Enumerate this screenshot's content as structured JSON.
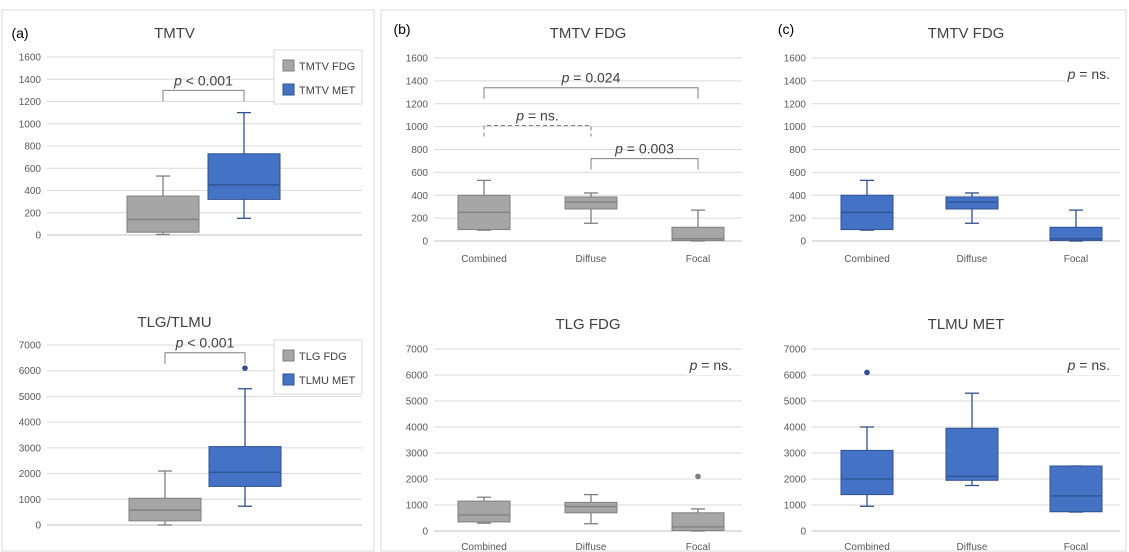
{
  "colors": {
    "gray_box": "#A6A6A6",
    "blue_box": "#4472C4",
    "gray_edge": "#7F7F7F",
    "blue_edge": "#2F528F",
    "grid": "#D9D9D9",
    "text": "#595959"
  },
  "chart_data": [
    {
      "id": "a-top",
      "type": "box",
      "panel_letter": "(a)",
      "title": "TMTV",
      "ylim": [
        0,
        1600
      ],
      "yticks": [
        0,
        200,
        400,
        600,
        800,
        1000,
        1200,
        1400,
        1600
      ],
      "legend": [
        {
          "name": "TMTV FDG",
          "color": "#A6A6A6"
        },
        {
          "name": "TMTV MET",
          "color": "#4472C4"
        }
      ],
      "boxes": [
        {
          "series": "TMTV FDG",
          "min": 5,
          "q1": 25,
          "median": 140,
          "q3": 350,
          "max": 530,
          "color": "#A6A6A6",
          "edge": "#7F7F7F",
          "outliers": []
        },
        {
          "series": "TMTV MET",
          "min": 150,
          "q1": 320,
          "median": 450,
          "q3": 730,
          "max": 1100,
          "color": "#4472C4",
          "edge": "#2F528F",
          "outliers": []
        }
      ],
      "annotations": [
        {
          "text": "p < 0.001",
          "p_prefix": "p",
          "p_rest": " < 0.001",
          "from": 0,
          "to": 1,
          "y": 1300,
          "dashed": false
        }
      ]
    },
    {
      "id": "a-bottom",
      "type": "box",
      "panel_letter": "",
      "title": "TLG/TLMU",
      "ylim": [
        0,
        7000
      ],
      "yticks": [
        0,
        1000,
        2000,
        3000,
        4000,
        5000,
        6000,
        7000
      ],
      "legend": [
        {
          "name": "TLG FDG",
          "color": "#A6A6A6"
        },
        {
          "name": "TLMU MET",
          "color": "#4472C4"
        }
      ],
      "boxes": [
        {
          "series": "TLG FDG",
          "min": 0,
          "q1": 160,
          "median": 580,
          "q3": 1040,
          "max": 2100,
          "color": "#A6A6A6",
          "edge": "#7F7F7F",
          "outliers": []
        },
        {
          "series": "TLMU MET",
          "min": 730,
          "q1": 1500,
          "median": 2050,
          "q3": 3050,
          "max": 5300,
          "color": "#4472C4",
          "edge": "#2F528F",
          "outliers": [
            6100
          ]
        }
      ],
      "annotations": [
        {
          "text": "p < 0.001",
          "p_prefix": "p",
          "p_rest": " < 0.001",
          "from": 0,
          "to": 1,
          "y": 6700,
          "dashed": false
        }
      ]
    },
    {
      "id": "b-top",
      "type": "box",
      "panel_letter": "(b)",
      "title": "TMTV FDG",
      "categories": [
        "Combined",
        "Diffuse",
        "Focal"
      ],
      "ylim": [
        0,
        1600
      ],
      "yticks": [
        0,
        200,
        400,
        600,
        800,
        1000,
        1200,
        1400,
        1600
      ],
      "boxes": [
        {
          "min": 95,
          "q1": 100,
          "median": 250,
          "q3": 400,
          "max": 530,
          "color": "#A6A6A6",
          "edge": "#7F7F7F",
          "outliers": []
        },
        {
          "min": 155,
          "q1": 280,
          "median": 340,
          "q3": 385,
          "max": 420,
          "color": "#A6A6A6",
          "edge": "#7F7F7F",
          "outliers": []
        },
        {
          "min": 0,
          "q1": 5,
          "median": 20,
          "q3": 120,
          "max": 270,
          "color": "#A6A6A6",
          "edge": "#7F7F7F",
          "outliers": []
        }
      ],
      "annotations": [
        {
          "text": "p = 0.024",
          "p_prefix": "p",
          "p_rest": " = 0.024",
          "from": 0,
          "to": 2,
          "y": 1340,
          "dashed": false
        },
        {
          "text": "p = ns.",
          "p_prefix": "p",
          "p_rest": " = ns.",
          "from": 0,
          "to": 1,
          "y": 1010,
          "dashed": true
        },
        {
          "text": "p = 0.003",
          "p_prefix": "p",
          "p_rest": " = 0.003",
          "from": 1,
          "to": 2,
          "y": 720,
          "dashed": false
        }
      ]
    },
    {
      "id": "b-bottom",
      "type": "box",
      "panel_letter": "",
      "title": "TLG FDG",
      "categories": [
        "Combined",
        "Diffuse",
        "Focal"
      ],
      "ylim": [
        0,
        7000
      ],
      "yticks": [
        0,
        1000,
        2000,
        3000,
        4000,
        5000,
        6000,
        7000
      ],
      "boxes": [
        {
          "min": 300,
          "q1": 350,
          "median": 620,
          "q3": 1150,
          "max": 1300,
          "color": "#A6A6A6",
          "edge": "#7F7F7F",
          "outliers": []
        },
        {
          "min": 280,
          "q1": 700,
          "median": 940,
          "q3": 1100,
          "max": 1400,
          "color": "#A6A6A6",
          "edge": "#7F7F7F",
          "outliers": []
        },
        {
          "min": 0,
          "q1": 20,
          "median": 160,
          "q3": 700,
          "max": 850,
          "color": "#A6A6A6",
          "edge": "#7F7F7F",
          "outliers": [
            2100
          ]
        }
      ],
      "note": {
        "text": "p = ns.",
        "p_prefix": "p",
        "p_rest": " = ns."
      }
    },
    {
      "id": "c-top",
      "type": "box",
      "panel_letter": "(c)",
      "title": "TMTV FDG",
      "categories": [
        "Combined",
        "Diffuse",
        "Focal"
      ],
      "ylim": [
        0,
        1600
      ],
      "yticks": [
        0,
        200,
        400,
        600,
        800,
        1000,
        1200,
        1400,
        1600
      ],
      "boxes": [
        {
          "min": 95,
          "q1": 100,
          "median": 250,
          "q3": 400,
          "max": 530,
          "color": "#4472C4",
          "edge": "#2F528F",
          "outliers": []
        },
        {
          "min": 155,
          "q1": 280,
          "median": 340,
          "q3": 385,
          "max": 420,
          "color": "#4472C4",
          "edge": "#2F528F",
          "outliers": []
        },
        {
          "min": 0,
          "q1": 5,
          "median": 20,
          "q3": 120,
          "max": 270,
          "color": "#4472C4",
          "edge": "#2F528F",
          "outliers": []
        }
      ],
      "note": {
        "text": "p = ns.",
        "p_prefix": "p",
        "p_rest": " = ns."
      }
    },
    {
      "id": "c-bottom",
      "type": "box",
      "panel_letter": "",
      "title": "TLMU MET",
      "categories": [
        "Combined",
        "Diffuse",
        "Focal"
      ],
      "ylim": [
        0,
        7000
      ],
      "yticks": [
        0,
        1000,
        2000,
        3000,
        4000,
        5000,
        6000,
        7000
      ],
      "boxes": [
        {
          "min": 950,
          "q1": 1400,
          "median": 2000,
          "q3": 3100,
          "max": 4000,
          "color": "#4472C4",
          "edge": "#2F528F",
          "outliers": [
            6100
          ]
        },
        {
          "min": 1750,
          "q1": 1950,
          "median": 2100,
          "q3": 3950,
          "max": 5300,
          "color": "#4472C4",
          "edge": "#2F528F",
          "outliers": []
        },
        {
          "min": 730,
          "q1": 740,
          "median": 1350,
          "q3": 2500,
          "max": 2500,
          "color": "#4472C4",
          "edge": "#2F528F",
          "outliers": []
        }
      ],
      "note": {
        "text": "p = ns.",
        "p_prefix": "p",
        "p_rest": " = ns."
      }
    }
  ]
}
